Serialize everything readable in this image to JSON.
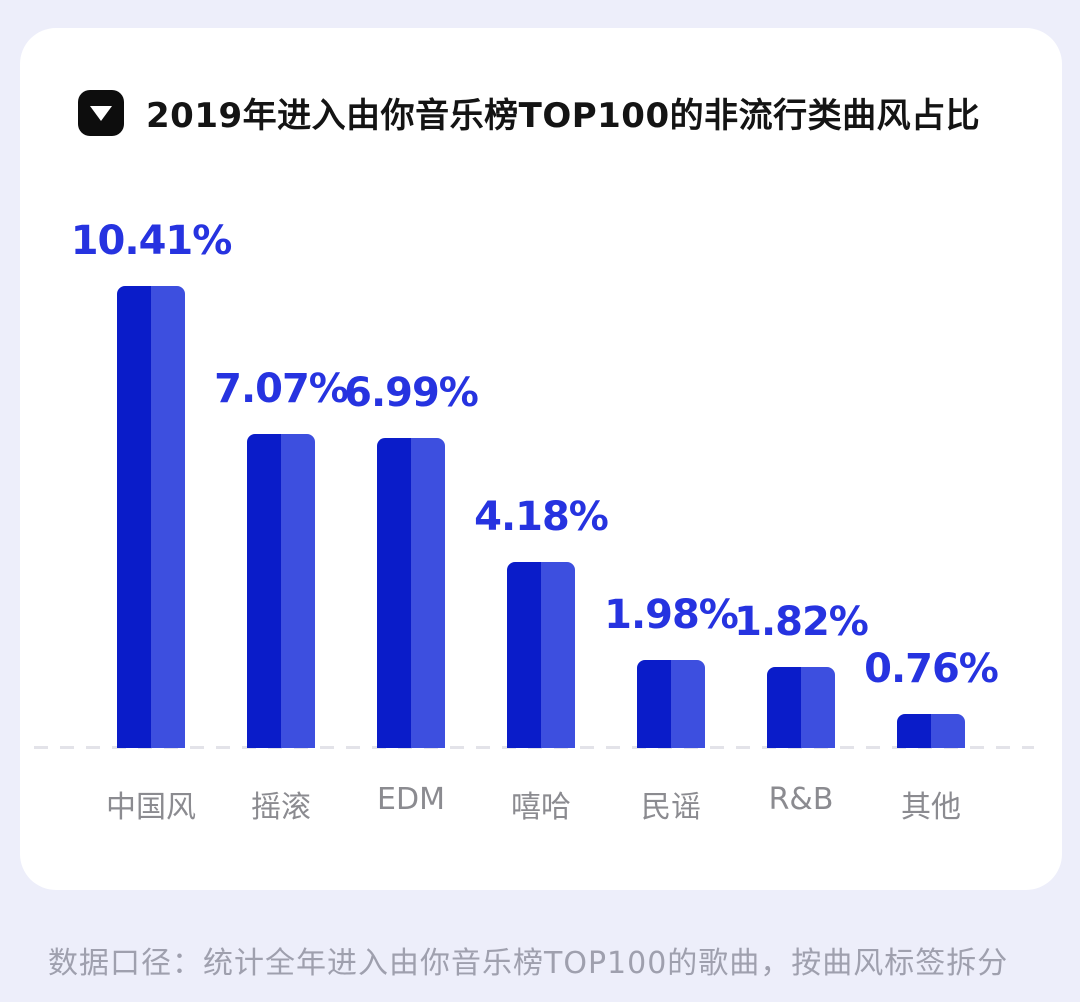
{
  "page": {
    "background_color": "#edeefa",
    "card_background_color": "#ffffff"
  },
  "header": {
    "icon": "down-triangle-icon",
    "title": "2019年进入由你音乐榜TOP100的非流行类曲风占比"
  },
  "chart_data": {
    "type": "bar",
    "title": "2019年进入由你音乐榜TOP100的非流行类曲风占比",
    "categories": [
      "中国风",
      "摇滚",
      "EDM",
      "嘻哈",
      "民谣",
      "R&B",
      "其他"
    ],
    "values": [
      10.41,
      7.07,
      6.99,
      4.18,
      1.98,
      1.82,
      0.76
    ],
    "value_labels": [
      "10.41%",
      "7.07%",
      "6.99%",
      "4.18%",
      "1.98%",
      "1.82%",
      "0.76%"
    ],
    "unit": "%",
    "xlabel": "",
    "ylabel": "",
    "ylim": [
      0,
      10.41
    ],
    "grid": false,
    "legend": null,
    "baseline_style": "dashed",
    "colors": {
      "bar_left": "#0a1cc9",
      "bar_right": "#3d4fdf",
      "value_label": "#2633e0",
      "category_label": "#8b8b90",
      "baseline": "#e3e3e9"
    }
  },
  "footer": {
    "note": "数据口径：统计全年进入由你音乐榜TOP100的歌曲，按曲风标签拆分"
  }
}
